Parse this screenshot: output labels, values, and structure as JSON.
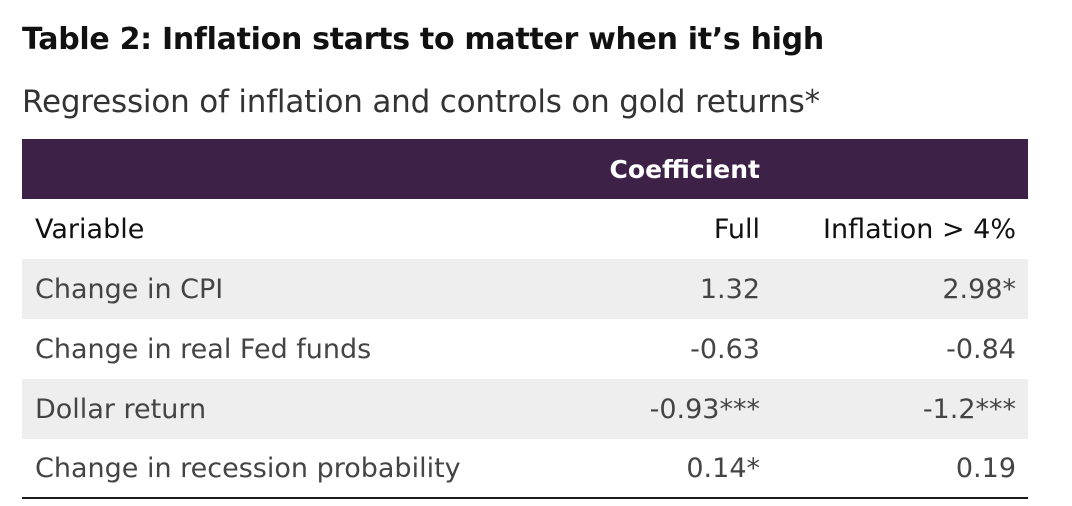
{
  "title": "Table 2: Inflation starts to matter when it’s high",
  "subtitle": "Regression of inflation and controls on gold returns*",
  "table": {
    "group_header": "Coefficient",
    "columns": [
      "Variable",
      "Full",
      "Inflation > 4%"
    ],
    "rows": [
      {
        "variable": "Change in CPI",
        "full": "1.32",
        "inflation_gt_4": "2.98*"
      },
      {
        "variable": "Change in real Fed funds",
        "full": "-0.63",
        "inflation_gt_4": "-0.84"
      },
      {
        "variable": "Dollar return",
        "full": "-0.93***",
        "inflation_gt_4": "-1.2***"
      },
      {
        "variable": "Change in recession probability",
        "full": "0.14*",
        "inflation_gt_4": "0.19"
      }
    ]
  },
  "colors": {
    "header_band": "#3d2147",
    "row_shade": "#eeeeee",
    "rule": "#1a1a1a"
  }
}
